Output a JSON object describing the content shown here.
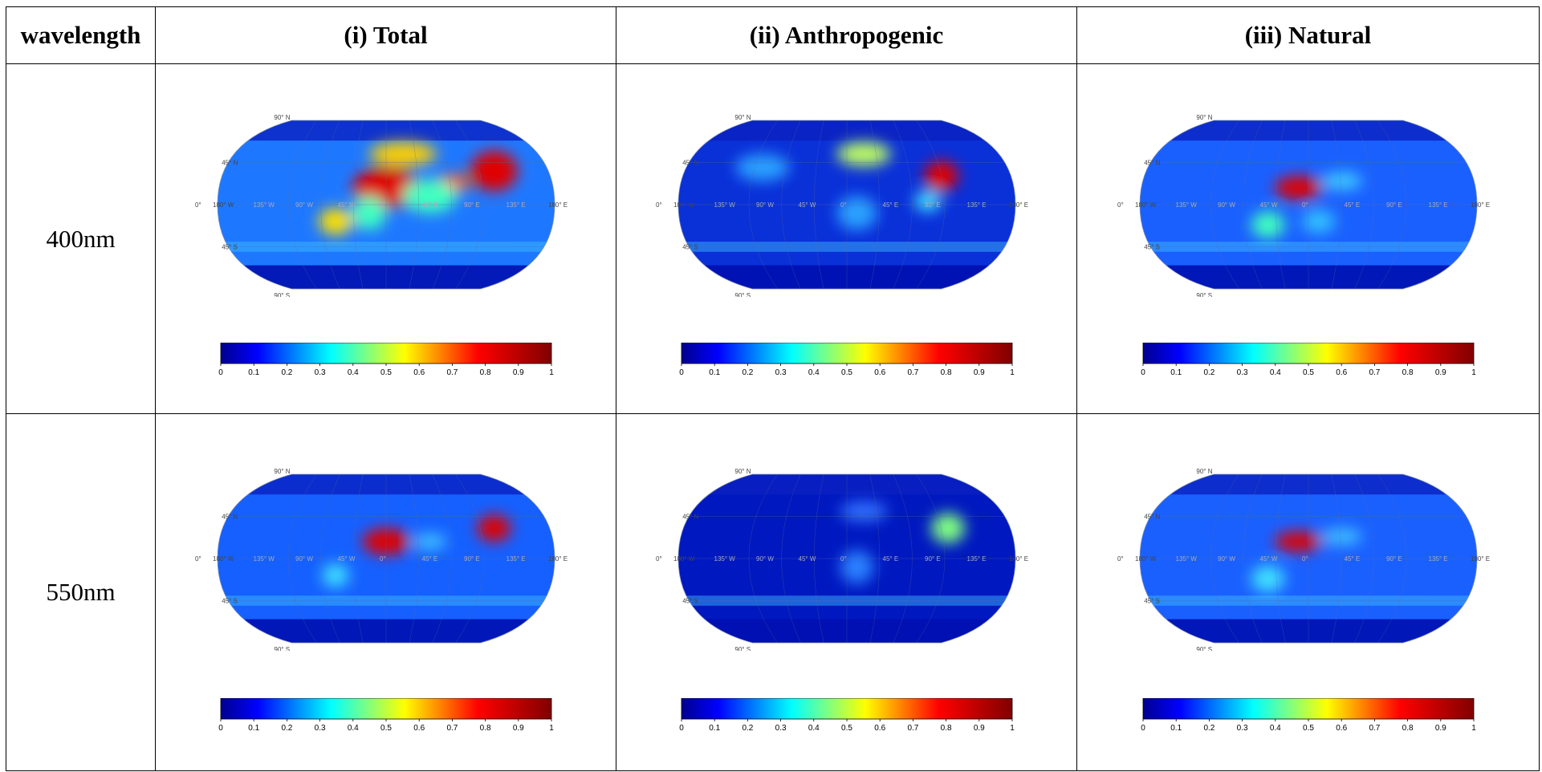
{
  "table": {
    "headers": [
      "wavelength",
      "(i) Total",
      "(ii) Anthropogenic",
      "(iii) Natural"
    ],
    "rows": [
      {
        "wavelength": "400nm"
      },
      {
        "wavelength": "550nm"
      }
    ]
  },
  "map_labels": {
    "lat": [
      "90° N",
      "45° N",
      "0°",
      "45° S",
      "90° S"
    ],
    "lon": [
      "180° W",
      "135° W",
      "90° W",
      "45° W",
      "0°",
      "45° E",
      "90° E",
      "135° E",
      "180° E"
    ]
  },
  "colorbar": {
    "ticks": [
      "0",
      "0.1",
      "0.2",
      "0.3",
      "0.4",
      "0.5",
      "0.6",
      "0.7",
      "0.8",
      "0.9",
      "1"
    ],
    "colors": [
      "#00008f",
      "#0000ff",
      "#0080ff",
      "#00ffff",
      "#80ff80",
      "#ffff00",
      "#ff8000",
      "#ff0000",
      "#c00000",
      "#800000"
    ]
  },
  "colors": {
    "ocean_low": "#0000a8",
    "background_level": "#1a5fff",
    "hotspot": "#e00000"
  }
}
